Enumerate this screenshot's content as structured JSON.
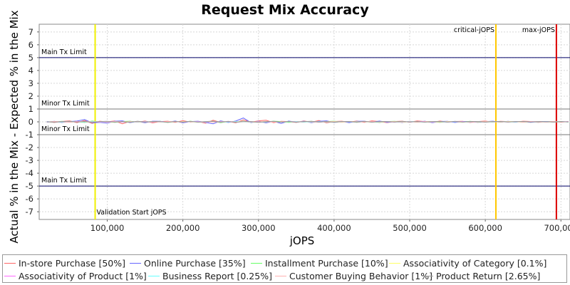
{
  "chart_data": {
    "type": "line",
    "title": "Request Mix Accuracy",
    "xlabel": "jOPS",
    "ylabel": "Actual % in the Mix - Expected % in the Mix",
    "xlim": [
      10000,
      712000
    ],
    "ylim": [
      -7.6,
      7.6
    ],
    "xticks": [
      100000,
      200000,
      300000,
      400000,
      500000,
      600000,
      700000
    ],
    "xtick_labels": [
      "100,000",
      "200,000",
      "300,000",
      "400,000",
      "500,000",
      "600,000",
      "700,000"
    ],
    "yticks": [
      7,
      6,
      5,
      4,
      3,
      2,
      1,
      0,
      -1,
      -2,
      -3,
      -4,
      -5,
      -6,
      -7
    ],
    "ytick_labels": [
      "7",
      "6",
      "5",
      "4",
      "3",
      "2",
      "1",
      "0",
      "-1",
      "-2",
      "-3",
      "-4",
      "-5",
      "-6",
      "-7"
    ],
    "grid": true,
    "legend_position": "bottom",
    "hlines": [
      {
        "y": 5,
        "label": "Main Tx Limit",
        "color": "#000066"
      },
      {
        "y": 1,
        "label": "Minor Tx Limit",
        "color": "#777777"
      },
      {
        "y": -1,
        "label": "Minor Tx Limit",
        "color": "#777777"
      },
      {
        "y": -5,
        "label": "Main Tx Limit",
        "color": "#000066"
      }
    ],
    "vlines": [
      {
        "x": 84000,
        "label": "Validation Start jOPS",
        "color": "#f0f000"
      },
      {
        "x": 614000,
        "label": "critical-jOPS",
        "color": "#ffc800"
      },
      {
        "x": 694000,
        "label": "max-jOPS",
        "color": "#dd0000"
      }
    ],
    "x": [
      20000,
      30000,
      40000,
      50000,
      60000,
      70000,
      80000,
      90000,
      100000,
      110000,
      120000,
      130000,
      140000,
      150000,
      160000,
      170000,
      180000,
      190000,
      200000,
      210000,
      220000,
      230000,
      240000,
      250000,
      260000,
      270000,
      280000,
      290000,
      300000,
      310000,
      320000,
      330000,
      340000,
      350000,
      360000,
      370000,
      380000,
      390000,
      400000,
      410000,
      420000,
      430000,
      440000,
      450000,
      460000,
      470000,
      480000,
      490000,
      500000,
      510000,
      520000,
      530000,
      540000,
      550000,
      560000,
      570000,
      580000,
      590000,
      600000,
      610000,
      620000,
      630000,
      640000,
      650000,
      660000,
      670000,
      680000,
      690000,
      700000,
      710000
    ],
    "series": [
      {
        "name": "In-store Purchase [50%]",
        "color": "#ff6666",
        "values": [
          0.02,
          -0.05,
          0.03,
          0.08,
          -0.06,
          0.1,
          -0.12,
          0.05,
          0.0,
          0.07,
          -0.15,
          0.04,
          -0.03,
          0.06,
          -0.08,
          0.02,
          0.05,
          -0.04,
          0.09,
          -0.02,
          0.03,
          -0.1,
          0.12,
          -0.05,
          0.04,
          -0.07,
          0.15,
          -0.03,
          0.08,
          0.12,
          -0.06,
          0.04,
          0.02,
          -0.05,
          0.07,
          -0.03,
          0.1,
          -0.08,
          0.03,
          0.05,
          -0.02,
          0.06,
          -0.04,
          0.08,
          0.02,
          -0.06,
          0.03,
          0.05,
          -0.03,
          0.07,
          0.02,
          -0.04,
          0.06,
          -0.02,
          0.03,
          0.04,
          -0.05,
          0.02,
          0.06,
          -0.03,
          0.04,
          0.02,
          -0.02,
          0.05,
          0.03,
          -0.04,
          0.02,
          0.03,
          -0.02,
          0.01
        ]
      },
      {
        "name": "Online Purchase [35%]",
        "color": "#6666ff",
        "values": [
          -0.03,
          0.04,
          -0.05,
          0.02,
          0.06,
          0.18,
          -0.08,
          -0.04,
          -0.1,
          0.05,
          0.08,
          -0.06,
          0.03,
          -0.07,
          0.05,
          0.04,
          -0.03,
          0.06,
          -0.08,
          0.02,
          0.05,
          -0.04,
          -0.15,
          0.08,
          -0.05,
          0.06,
          0.3,
          -0.06,
          0.05,
          -0.08,
          0.04,
          -0.12,
          0.06,
          -0.03,
          0.05,
          -0.06,
          0.04,
          0.08,
          -0.05,
          0.03,
          -0.06,
          0.04,
          0.05,
          -0.03,
          0.06,
          -0.04,
          0.02,
          -0.05,
          0.04,
          -0.02,
          0.05,
          -0.06,
          0.03,
          0.04,
          -0.05,
          0.02,
          0.03,
          -0.04,
          0.02,
          0.05,
          -0.03,
          0.04,
          -0.02,
          0.03,
          -0.04,
          0.02,
          0.03,
          -0.02,
          0.02,
          -0.01
        ]
      },
      {
        "name": "Installment Purchase [10%]",
        "color": "#66ff66",
        "values": [
          0.01,
          -0.02,
          0.04,
          -0.03,
          0.02,
          -0.05,
          0.06,
          -0.02,
          0.03,
          -0.04,
          0.02,
          0.05,
          -0.03,
          0.02,
          -0.02,
          0.04,
          -0.05,
          0.03,
          -0.02,
          0.05,
          -0.03,
          0.02,
          0.04,
          -0.06,
          0.03,
          -0.02,
          0.05,
          -0.04,
          0.02,
          -0.03,
          0.05,
          0.02,
          -0.04,
          0.03,
          -0.02,
          0.04,
          -0.03,
          0.02,
          0.05,
          -0.02,
          0.03,
          -0.04,
          0.02,
          0.03,
          -0.05,
          0.02,
          0.04,
          -0.03,
          0.02,
          -0.02,
          0.03,
          0.02,
          -0.04,
          0.03,
          0.02,
          -0.02,
          0.04,
          -0.03,
          0.02,
          0.01,
          -0.02,
          0.03,
          0.02,
          -0.03,
          0.02,
          0.01,
          -0.02,
          0.02,
          0.01,
          -0.01
        ]
      },
      {
        "name": "Associativity of Category [0.1%]",
        "color": "#ffff66",
        "values": [
          0.0,
          0.01,
          -0.01,
          0.0,
          0.01,
          -0.01,
          0.0,
          0.01,
          0.0,
          -0.01,
          0.0,
          0.01,
          -0.01,
          0.0,
          0.01,
          0.0,
          -0.01,
          0.0,
          0.01,
          0.0,
          -0.01,
          0.0,
          0.01,
          -0.01,
          0.0,
          0.01,
          0.0,
          -0.01,
          0.0,
          0.01,
          0.0,
          -0.01,
          0.0,
          0.01,
          0.0,
          -0.01,
          0.0,
          0.01,
          0.0,
          -0.01,
          0.0,
          0.01,
          0.0,
          -0.01,
          0.0,
          0.01,
          0.0,
          -0.01,
          0.0,
          0.01,
          0.0,
          -0.01,
          0.0,
          0.01,
          0.0,
          -0.01,
          0.0,
          0.01,
          0.0,
          -0.01,
          0.0,
          0.01,
          0.0,
          -0.01,
          0.0,
          0.01,
          0.0,
          -0.01,
          0.0,
          0.0
        ]
      },
      {
        "name": "Associativity of Product [1%]",
        "color": "#ff66ff",
        "values": [
          0.02,
          -0.01,
          0.01,
          -0.02,
          0.03,
          -0.01,
          0.02,
          -0.03,
          0.01,
          0.02,
          -0.02,
          0.01,
          -0.01,
          0.02,
          -0.02,
          0.03,
          -0.01,
          0.02,
          -0.02,
          0.01,
          0.02,
          -0.03,
          0.01,
          -0.02,
          0.03,
          -0.01,
          0.02,
          -0.02,
          0.01,
          -0.01,
          0.02,
          -0.02,
          0.01,
          0.02,
          -0.01,
          0.02,
          -0.02,
          0.01,
          -0.01,
          0.02,
          0.01,
          -0.02,
          0.01,
          0.02,
          -0.01,
          0.01,
          -0.02,
          0.02,
          -0.01,
          0.01,
          0.02,
          -0.01,
          0.01,
          -0.02,
          0.01,
          0.01,
          -0.01,
          0.02,
          -0.01,
          0.01,
          0.01,
          -0.01,
          0.02,
          -0.01,
          0.01,
          0.01,
          -0.01,
          0.01,
          0.0,
          0.01
        ]
      },
      {
        "name": "Business Report [0.25%]",
        "color": "#66ffff",
        "values": [
          0.01,
          0.0,
          -0.01,
          0.01,
          0.0,
          -0.01,
          0.02,
          0.0,
          -0.01,
          0.01,
          0.0,
          -0.02,
          0.01,
          0.0,
          0.01,
          -0.01,
          0.0,
          0.01,
          -0.01,
          0.02,
          0.0,
          -0.01,
          0.01,
          0.0,
          -0.01,
          0.01,
          0.0,
          0.01,
          -0.01,
          0.0,
          0.01,
          -0.01,
          0.0,
          0.02,
          -0.01,
          0.0,
          0.01,
          -0.01,
          0.0,
          0.01,
          0.0,
          -0.01,
          0.01,
          0.0,
          -0.01,
          0.01,
          0.0,
          -0.01,
          0.01,
          0.0,
          -0.01,
          0.01,
          0.0,
          -0.01,
          0.01,
          0.0,
          -0.01,
          0.01,
          0.0,
          -0.01,
          0.01,
          0.0,
          -0.01,
          0.01,
          0.0,
          -0.01,
          0.01,
          0.0,
          0.0,
          0.0
        ]
      },
      {
        "name": "Customer Buying Behavior [1%]",
        "color": "#ffb0b0",
        "values": [
          -0.01,
          0.02,
          0.01,
          -0.02,
          0.01,
          0.03,
          -0.01,
          0.02,
          -0.02,
          0.01,
          0.02,
          -0.01,
          0.03,
          -0.02,
          0.01,
          -0.01,
          0.02,
          0.01,
          -0.02,
          0.03,
          -0.01,
          0.02,
          -0.01,
          0.01,
          0.02,
          -0.02,
          0.01,
          0.03,
          -0.01,
          0.02,
          -0.02,
          0.01,
          0.02,
          -0.01,
          0.02,
          0.01,
          -0.02,
          0.01,
          0.02,
          -0.01,
          0.02,
          -0.02,
          0.01,
          0.02,
          -0.01,
          0.01,
          0.02,
          -0.01,
          0.01,
          -0.02,
          0.01,
          0.02,
          -0.01,
          0.01,
          0.02,
          -0.01,
          0.01,
          -0.01,
          0.02,
          0.01,
          -0.01,
          0.01,
          0.01,
          -0.01,
          0.01,
          0.01,
          -0.01,
          0.01,
          0.0,
          0.0
        ]
      },
      {
        "name": "Product Return [2.65%]",
        "color": "#999999",
        "values": [
          0.0,
          -0.03,
          0.02,
          0.04,
          -0.02,
          0.03,
          -0.05,
          0.02,
          0.04,
          -0.03,
          0.02,
          -0.04,
          0.05,
          -0.02,
          0.03,
          0.02,
          -0.04,
          0.03,
          -0.02,
          0.04,
          -0.03,
          0.02,
          0.05,
          -0.02,
          0.03,
          -0.04,
          0.02,
          0.03,
          -0.05,
          0.02,
          0.04,
          -0.02,
          0.03,
          -0.03,
          0.02,
          0.04,
          -0.02,
          0.03,
          -0.04,
          0.02,
          0.03,
          -0.02,
          0.04,
          -0.03,
          0.02,
          0.03,
          -0.02,
          0.04,
          -0.02,
          0.03,
          -0.03,
          0.02,
          0.03,
          -0.02,
          0.04,
          -0.02,
          0.03,
          0.02,
          -0.03,
          0.02,
          0.03,
          -0.02,
          0.02,
          0.03,
          -0.02,
          0.02,
          0.01,
          -0.02,
          0.01,
          0.0
        ]
      }
    ]
  }
}
